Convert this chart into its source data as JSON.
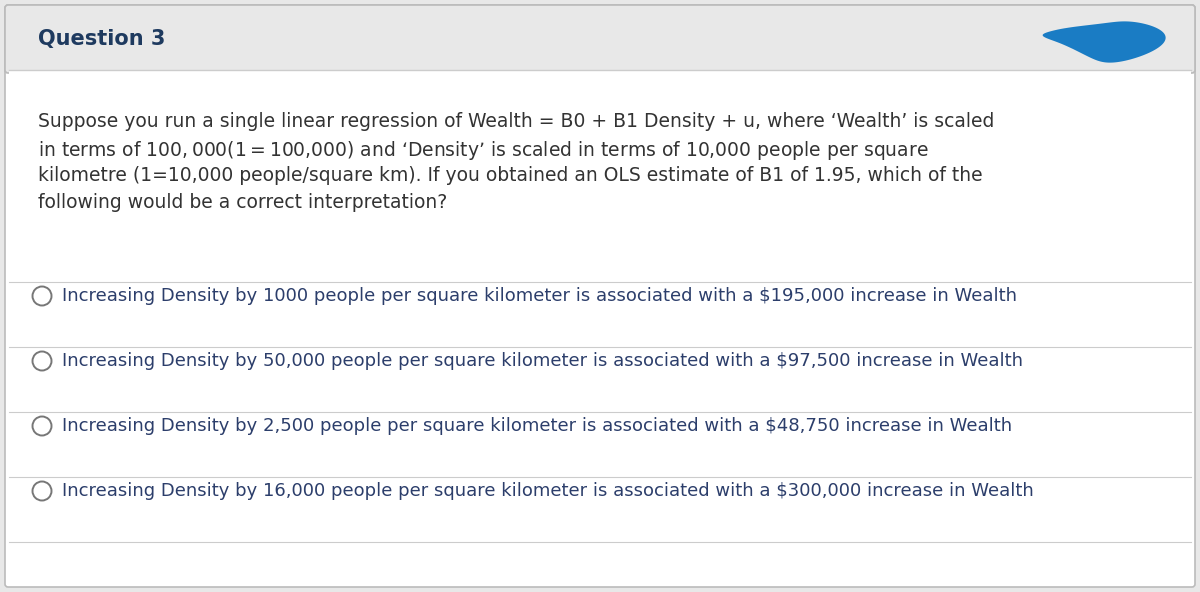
{
  "title": "Question 3",
  "question_lines": [
    "Suppose you run a single linear regression of Wealth = B0 + B1 Density + u, where ‘Wealth’ is scaled",
    "in terms of $100,000 (1=$100,000) and ‘Density’ is scaled in terms of 10,000 people per square",
    "kilometre (1=10,000 people/square km). If you obtained an OLS estimate of B1 of 1.95, which of the",
    "following would be a correct interpretation?"
  ],
  "options": [
    "Increasing Density by 1000 people per square kilometer is associated with a $195,000 increase in Wealth",
    "Increasing Density by 50,000 people per square kilometer is associated with a $97,500 increase in Wealth",
    "Increasing Density by 2,500 people per square kilometer is associated with a $48,750 increase in Wealth",
    "Increasing Density by 16,000 people per square kilometer is associated with a $300,000 increase in Wealth"
  ],
  "bg_color": "#e8e8e8",
  "card_color": "#ffffff",
  "header_bg": "#e8e8e8",
  "title_color": "#1e3a5f",
  "text_color": "#333333",
  "option_text_color": "#2c3e6b",
  "divider_color": "#cccccc",
  "circle_color": "#777777",
  "blob_color": "#1a7cc4",
  "title_fontsize": 15,
  "question_fontsize": 13.5,
  "option_fontsize": 13.0
}
